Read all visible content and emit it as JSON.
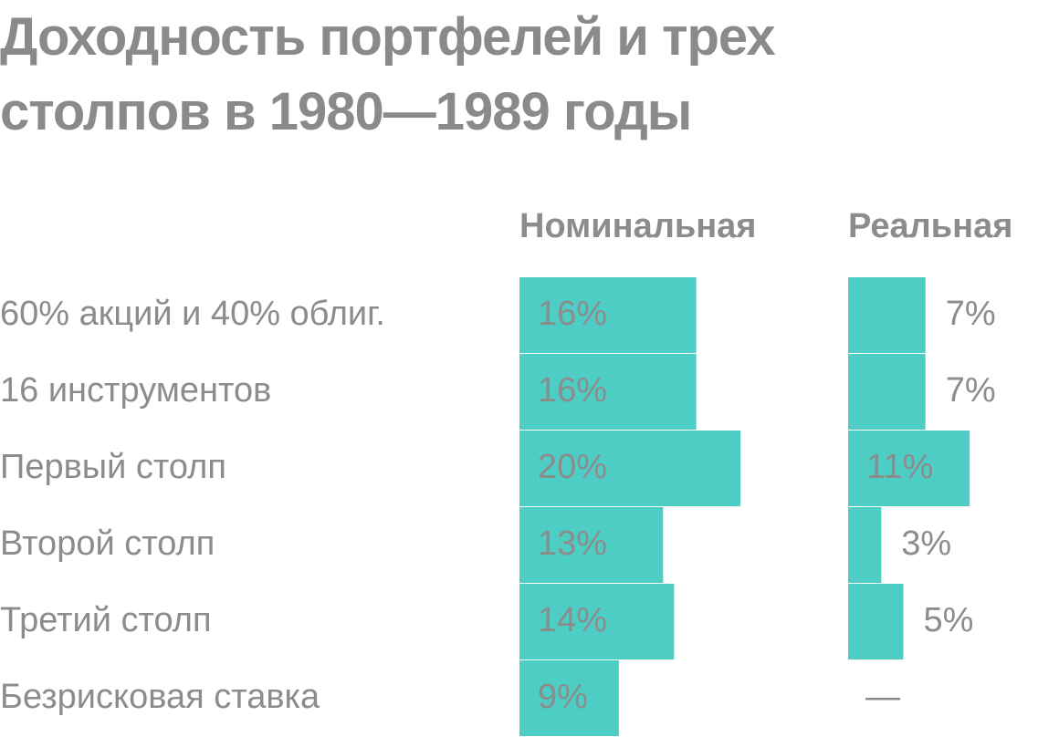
{
  "chart_data": {
    "type": "bar",
    "orientation": "horizontal",
    "title": "Доходность портфелей и трех столпов в 1980—1989 годы",
    "categories": [
      "60% акций и 40% облиг.",
      "16 инструментов",
      "Первый столп",
      "Второй столп",
      "Третий столп",
      "Безрисковая ставка"
    ],
    "series": [
      {
        "name": "Номинальная",
        "color": "#4ecdc4",
        "values": [
          16,
          16,
          20,
          13,
          14,
          9
        ],
        "value_labels": [
          "16%",
          "16%",
          "20%",
          "13%",
          "14%",
          "9%"
        ]
      },
      {
        "name": "Реальная",
        "color": "#4ecdc4",
        "values": [
          7,
          7,
          11,
          3,
          5,
          null
        ],
        "value_labels": [
          "7%",
          "7%",
          "11%",
          "3%",
          "5%",
          "—"
        ]
      }
    ]
  }
}
